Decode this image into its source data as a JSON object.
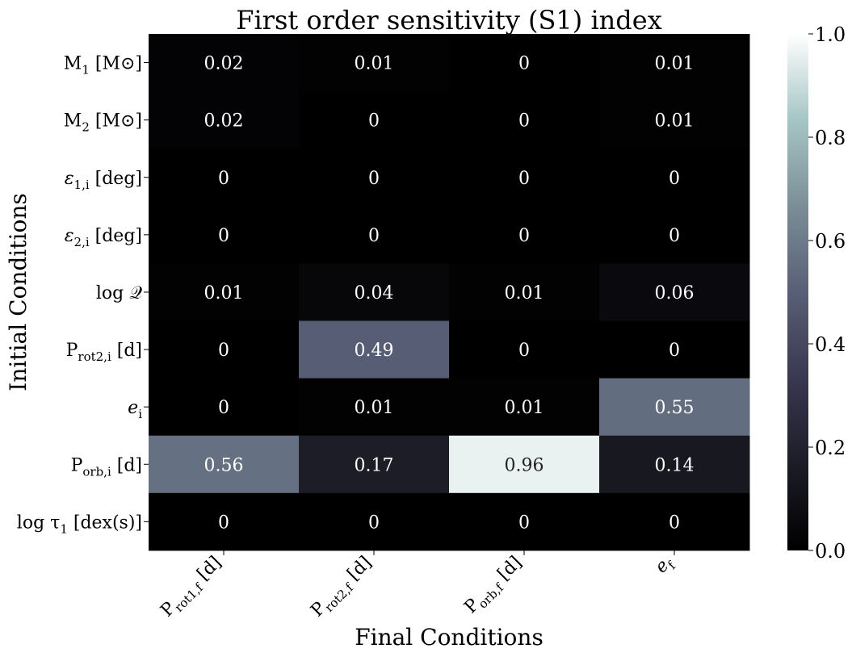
{
  "chart_data": {
    "type": "heatmap",
    "title": "First order sensitivity (S1) index",
    "xlabel": "Final Conditions",
    "ylabel": "Initial Conditions",
    "columns": [
      {
        "base": "P",
        "sub": "rot1,f",
        "tail": " [d]"
      },
      {
        "base": "P",
        "sub": "rot2,f",
        "tail": " [d]"
      },
      {
        "base": "P",
        "sub": "orb,f",
        "tail": " [d]"
      },
      {
        "base": "e",
        "sub": "f",
        "tail": "",
        "italic": true
      }
    ],
    "rows": [
      {
        "base": "M",
        "sub": "1",
        "tail": " [M⊙]"
      },
      {
        "base": "M",
        "sub": "2",
        "tail": " [M⊙]"
      },
      {
        "base": "ε",
        "sub": "1,i",
        "tail": " [deg]",
        "italic": true
      },
      {
        "base": "ε",
        "sub": "2,i",
        "tail": " [deg]",
        "italic": true
      },
      {
        "base": "log 𝒬",
        "sub": "",
        "tail": ""
      },
      {
        "base": "P",
        "sub": "rot2,i",
        "tail": " [d]"
      },
      {
        "base": "e",
        "sub": "i",
        "tail": "",
        "italic": true
      },
      {
        "base": "P",
        "sub": "orb,i",
        "tail": " [d]"
      },
      {
        "base": "log τ",
        "sub": "1",
        "tail": " [dex(s)]"
      }
    ],
    "values": [
      [
        0.02,
        0.01,
        0,
        0.01
      ],
      [
        0.02,
        0,
        0,
        0.01
      ],
      [
        0,
        0,
        0,
        0
      ],
      [
        0,
        0,
        0,
        0
      ],
      [
        0.01,
        0.04,
        0.01,
        0.06
      ],
      [
        0,
        0.49,
        0,
        0
      ],
      [
        0,
        0.01,
        0.01,
        0.55
      ],
      [
        0.56,
        0.17,
        0.96,
        0.14
      ],
      [
        0,
        0,
        0,
        0
      ]
    ],
    "colorbar": {
      "min": 0.0,
      "max": 1.0,
      "ticks": [
        "0.0",
        "0.2",
        "0.4",
        "0.6",
        "0.8",
        "1.0"
      ],
      "colormap": "bone",
      "stops": [
        "#000000",
        "#1c1c27",
        "#393850",
        "#585f76",
        "#7b8e97",
        "#a6c5c5",
        "#ffffff"
      ]
    }
  }
}
